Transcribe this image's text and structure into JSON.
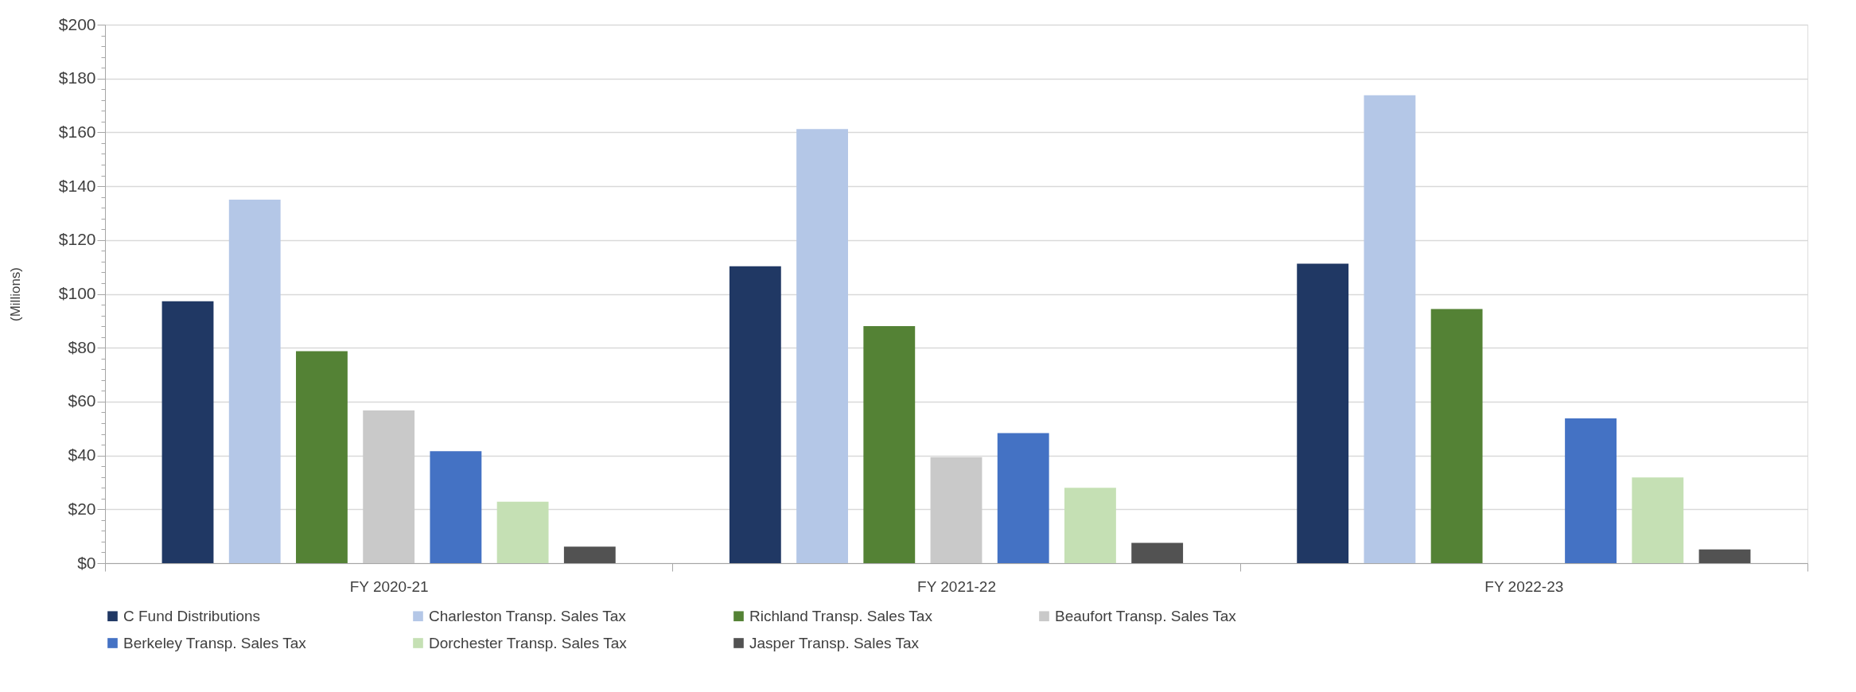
{
  "chart_data": {
    "type": "bar",
    "ylabel": "(Millions)",
    "categories": [
      "FY 2020-21",
      "FY 2021-22",
      "FY 2022-23"
    ],
    "series": [
      {
        "name": "C Fund Distributions",
        "color": "#203864",
        "values": [
          97.3,
          110.3,
          111.2
        ]
      },
      {
        "name": "Charleston Transp. Sales Tax",
        "color": "#b4c7e7",
        "values": [
          135.0,
          161.2,
          173.8
        ]
      },
      {
        "name": "Richland Transp. Sales Tax",
        "color": "#548235",
        "values": [
          78.7,
          88.0,
          94.4
        ]
      },
      {
        "name": "Beaufort Transp. Sales Tax",
        "color": "#c9c9c9",
        "values": [
          56.7,
          39.4,
          null
        ]
      },
      {
        "name": "Berkeley Transp. Sales Tax",
        "color": "#4472c4",
        "values": [
          41.6,
          48.3,
          53.8
        ]
      },
      {
        "name": "Dorchester Transp. Sales Tax",
        "color": "#c5e0b4",
        "values": [
          22.8,
          28.0,
          31.8
        ]
      },
      {
        "name": "Jasper Transp. Sales Tax",
        "color": "#525252",
        "values": [
          6.1,
          7.5,
          5.1
        ]
      }
    ],
    "ylim": [
      0,
      200
    ],
    "yticks": [
      {
        "value": 0,
        "label": "$0"
      },
      {
        "value": 4,
        "label": null
      },
      {
        "value": 8,
        "label": null
      },
      {
        "value": 12,
        "label": null
      },
      {
        "value": 16,
        "label": null
      },
      {
        "value": 20,
        "label": "$20"
      },
      {
        "value": 24,
        "label": null
      },
      {
        "value": 28,
        "label": null
      },
      {
        "value": 32,
        "label": null
      },
      {
        "value": 36,
        "label": null
      },
      {
        "value": 40,
        "label": "$40"
      },
      {
        "value": 44,
        "label": null
      },
      {
        "value": 48,
        "label": null
      },
      {
        "value": 52,
        "label": null
      },
      {
        "value": 56,
        "label": null
      },
      {
        "value": 60,
        "label": "$60"
      },
      {
        "value": 64,
        "label": null
      },
      {
        "value": 68,
        "label": null
      },
      {
        "value": 72,
        "label": null
      },
      {
        "value": 76,
        "label": null
      },
      {
        "value": 80,
        "label": "$80"
      },
      {
        "value": 84,
        "label": null
      },
      {
        "value": 88,
        "label": null
      },
      {
        "value": 92,
        "label": null
      },
      {
        "value": 96,
        "label": null
      },
      {
        "value": 100,
        "label": "$100"
      },
      {
        "value": 104,
        "label": null
      },
      {
        "value": 108,
        "label": null
      },
      {
        "value": 112,
        "label": null
      },
      {
        "value": 116,
        "label": null
      },
      {
        "value": 120,
        "label": "$120"
      },
      {
        "value": 124,
        "label": null
      },
      {
        "value": 128,
        "label": null
      },
      {
        "value": 132,
        "label": null
      },
      {
        "value": 136,
        "label": null
      },
      {
        "value": 140,
        "label": "$140"
      },
      {
        "value": 144,
        "label": null
      },
      {
        "value": 148,
        "label": null
      },
      {
        "value": 152,
        "label": null
      },
      {
        "value": 156,
        "label": null
      },
      {
        "value": 160,
        "label": "$160"
      },
      {
        "value": 164,
        "label": null
      },
      {
        "value": 168,
        "label": null
      },
      {
        "value": 172,
        "label": null
      },
      {
        "value": 176,
        "label": null
      },
      {
        "value": 180,
        "label": "$180"
      },
      {
        "value": 184,
        "label": null
      },
      {
        "value": 188,
        "label": null
      },
      {
        "value": 192,
        "label": null
      },
      {
        "value": 196,
        "label": null
      },
      {
        "value": 200,
        "label": "$200"
      }
    ],
    "grid": "y",
    "legend": "bottom"
  }
}
